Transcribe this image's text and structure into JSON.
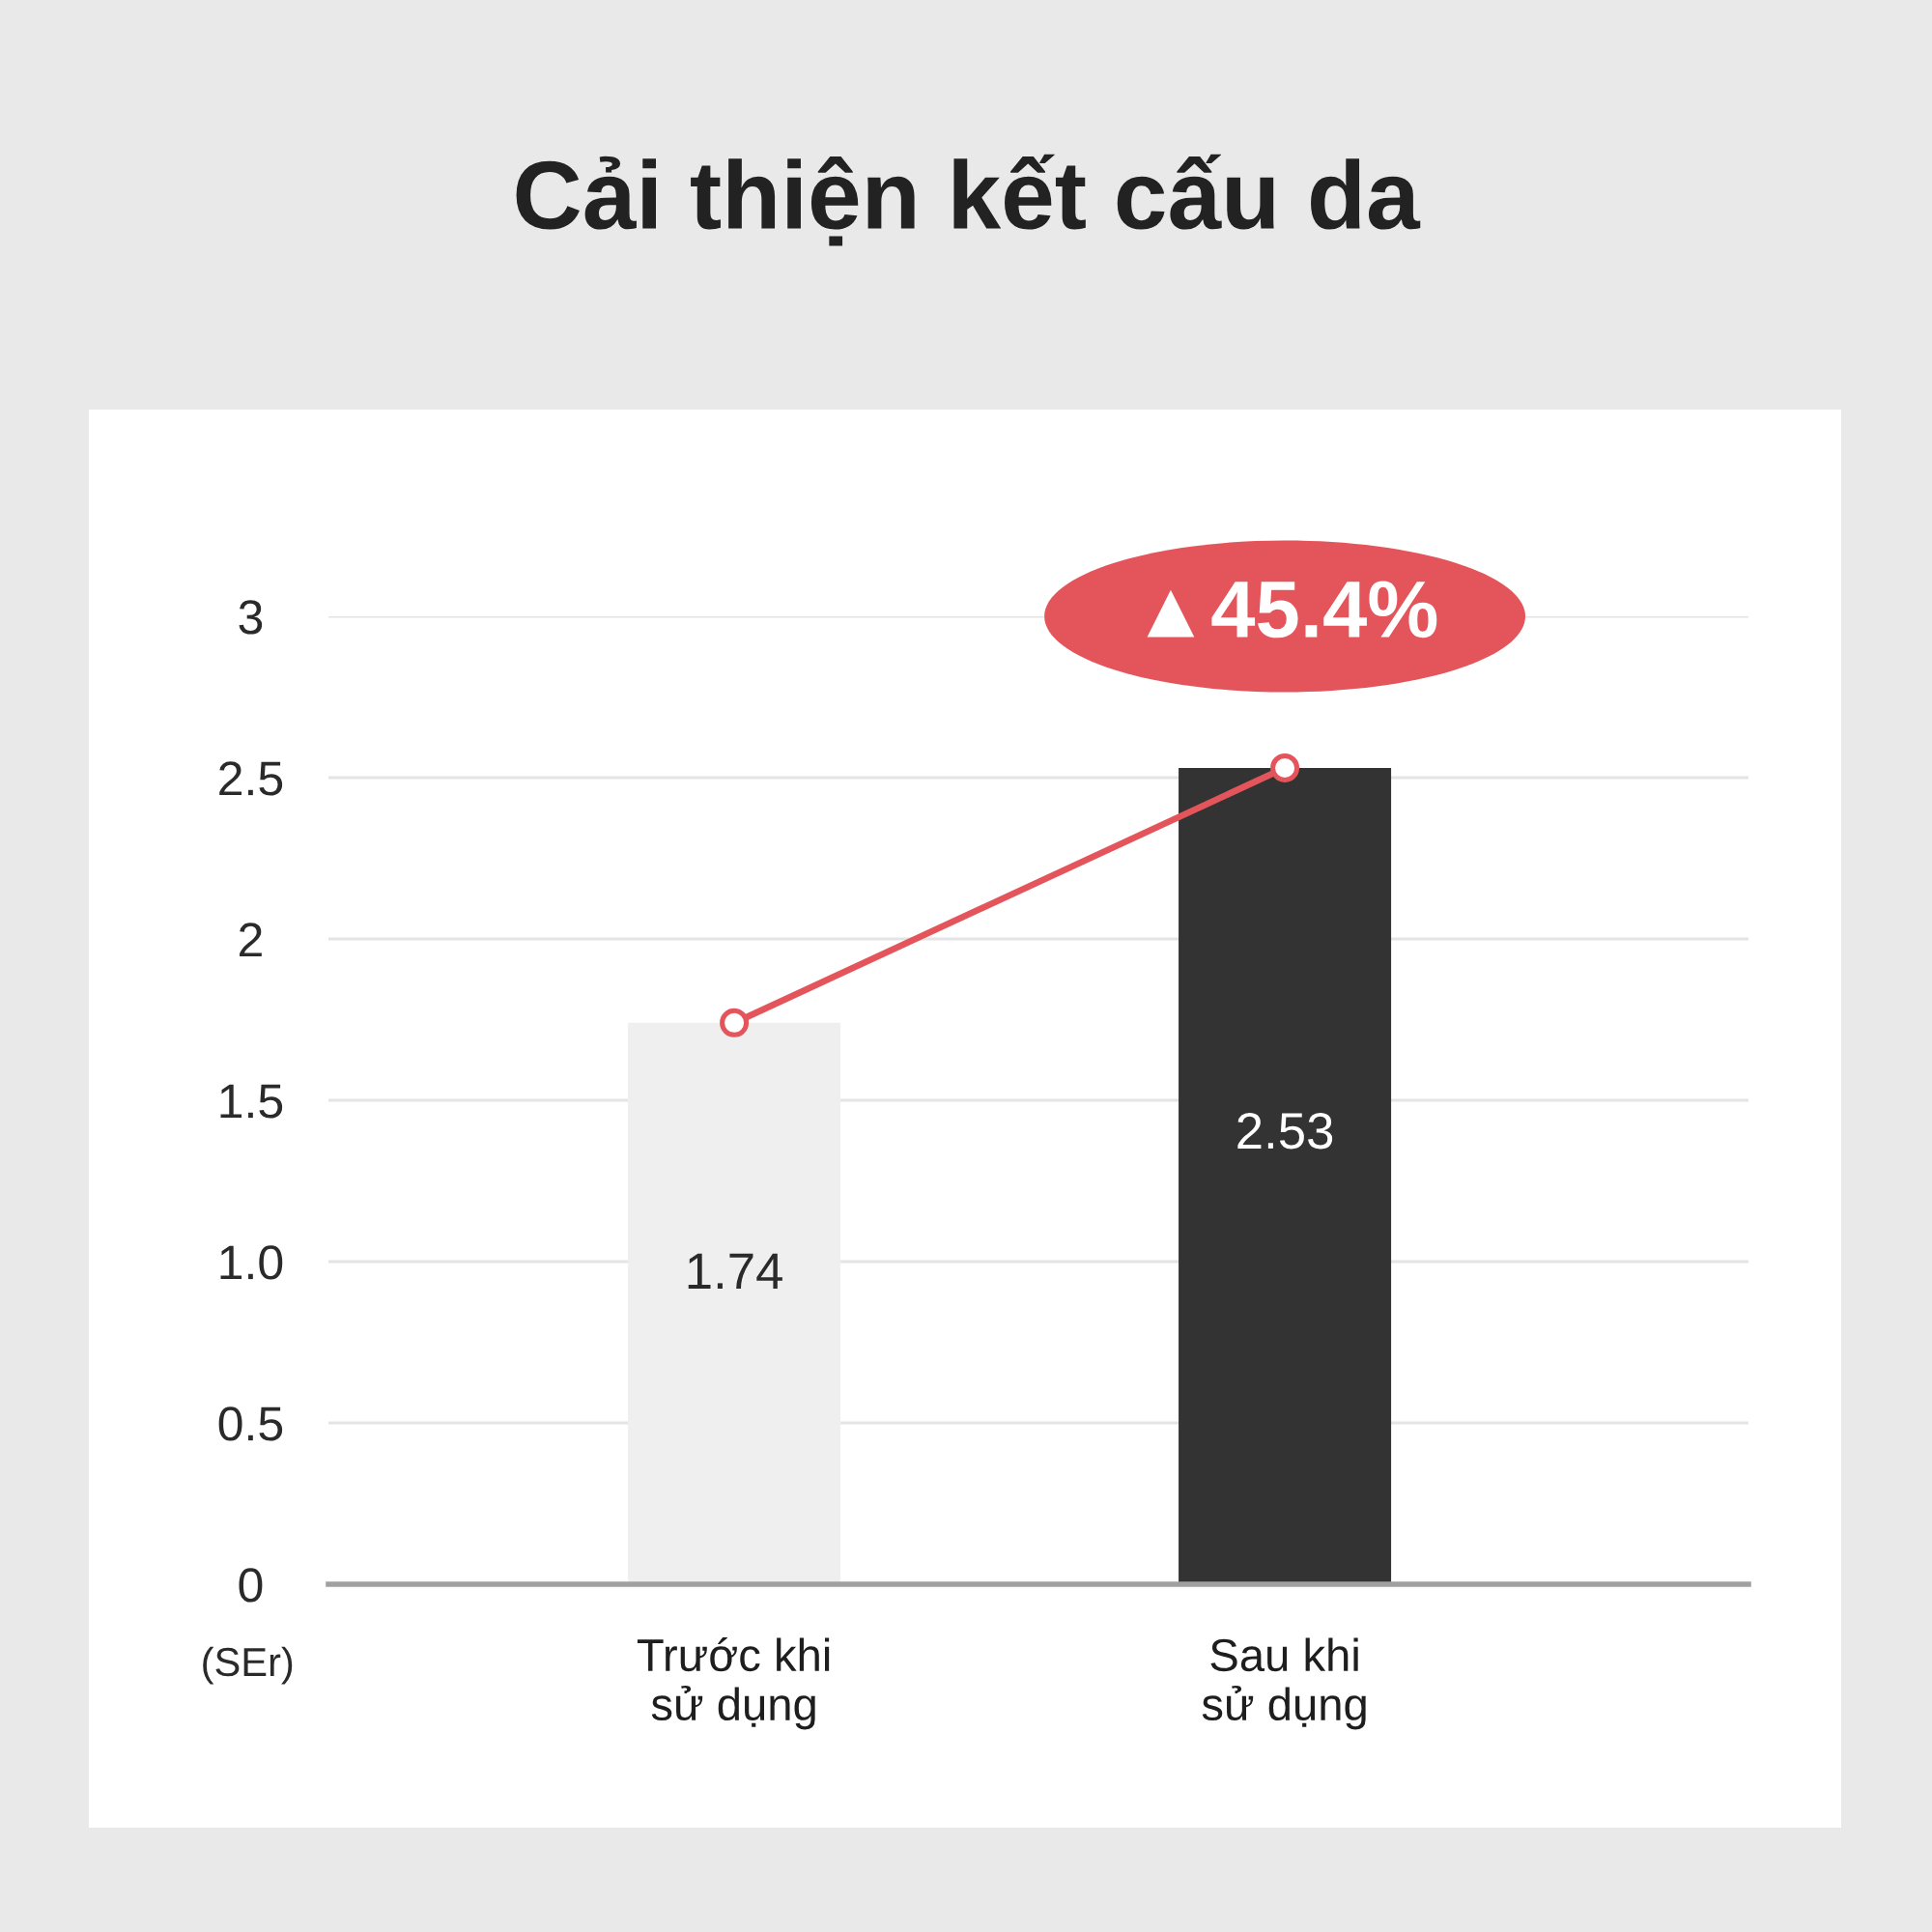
{
  "chart_data": {
    "type": "bar",
    "title": "Cải thiện kết cấu da",
    "ylabel": "(SEr)",
    "categories": [
      "Trước khi\nsử dụng",
      "Sau khi\nsử dụng"
    ],
    "series": [
      {
        "colors": [
          "#efefef",
          "#333333"
        ],
        "values": [
          1.74,
          2.53
        ],
        "value_labels": [
          "1.74",
          "2.53"
        ]
      },
      {
        "type": "line",
        "color": "#e4555b",
        "values": [
          1.74,
          2.53
        ],
        "marker": "circle"
      }
    ],
    "ylim": [
      0,
      3
    ],
    "yticks": [
      0,
      0.5,
      {
        "value": 1,
        "label": "1.0"
      },
      1.5,
      2,
      2.5,
      3
    ],
    "grid": "y",
    "annotations": [
      "▲45.4%"
    ]
  }
}
